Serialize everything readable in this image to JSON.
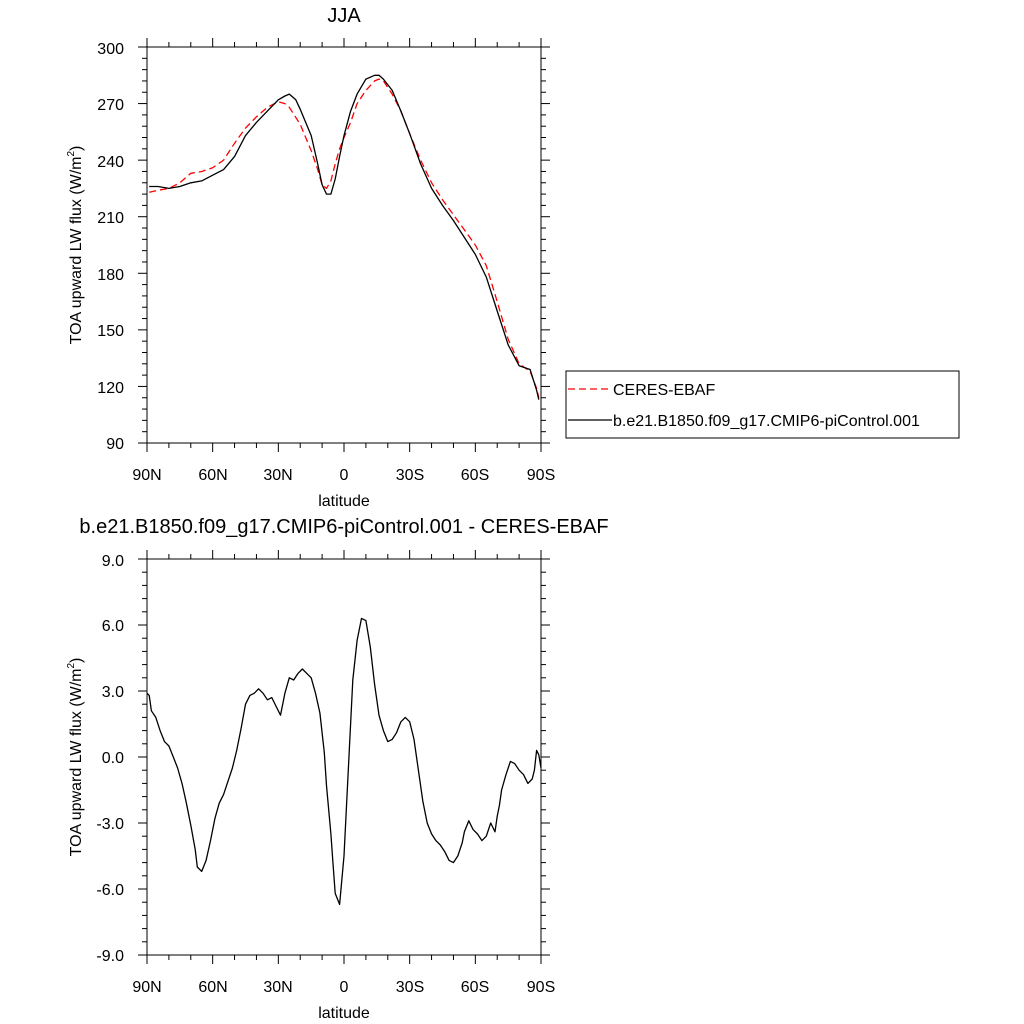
{
  "chart_data": [
    {
      "type": "line",
      "title": "JJA",
      "xlabel": "latitude",
      "ylabel": "TOA upward LW flux (W/m",
      "ylabel_sup": "2",
      "ylabel_close": ")",
      "xlim": [
        90,
        -90
      ],
      "ylim": [
        90,
        300
      ],
      "xticks": [
        90,
        60,
        30,
        0,
        -30,
        -60,
        -90
      ],
      "xtick_labels": [
        "90N",
        "60N",
        "30N",
        "0",
        "30S",
        "60S",
        "90S"
      ],
      "yticks": [
        90,
        120,
        150,
        180,
        210,
        240,
        270,
        300
      ],
      "ytick_labels": [
        "90",
        "120",
        "150",
        "180",
        "210",
        "240",
        "270",
        "300"
      ],
      "legend": "right",
      "series": [
        {
          "name": "CERES-EBAF",
          "color": "#ff0000",
          "dash": "dashed",
          "x": [
            89,
            85,
            80,
            75,
            70,
            65,
            60,
            55,
            50,
            45,
            40,
            35,
            30,
            27,
            25,
            20,
            15,
            12,
            10,
            8,
            6,
            4,
            2,
            0,
            -3,
            -6,
            -10,
            -14,
            -16,
            -18,
            -22,
            -26,
            -30,
            -35,
            -40,
            -45,
            -50,
            -55,
            -60,
            -65,
            -70,
            -75,
            -80,
            -85,
            -88,
            -89
          ],
          "y": [
            223,
            224,
            225,
            228,
            233,
            234,
            236,
            240,
            249,
            257,
            263,
            268,
            271,
            270,
            268,
            259,
            245,
            235,
            227,
            225,
            229,
            238,
            246,
            252,
            260,
            270,
            277,
            282,
            283,
            282,
            275,
            266,
            254,
            240,
            228,
            219,
            211,
            203,
            195,
            184,
            165,
            145,
            132,
            128,
            119,
            114
          ]
        },
        {
          "name": "b.e21.B1850.f09_g17.CMIP6-piControl.001",
          "color": "#000000",
          "dash": "solid",
          "x": [
            89,
            85,
            80,
            75,
            70,
            65,
            60,
            55,
            50,
            45,
            40,
            35,
            30,
            27,
            25,
            22,
            20,
            15,
            12,
            10,
            8,
            6,
            4,
            2,
            0,
            -3,
            -6,
            -10,
            -14,
            -16,
            -18,
            -22,
            -26,
            -30,
            -35,
            -40,
            -45,
            -50,
            -55,
            -60,
            -65,
            -70,
            -75,
            -80,
            -85,
            -88,
            -89
          ],
          "y": [
            226,
            226,
            225,
            226,
            228,
            229,
            232,
            235,
            242,
            253,
            260,
            266,
            272,
            274,
            275,
            272,
            267,
            253,
            238,
            227,
            222,
            222,
            230,
            242,
            253,
            266,
            275,
            283,
            285,
            285,
            283,
            277,
            266,
            254,
            238,
            225,
            216,
            208,
            199,
            190,
            178,
            160,
            142,
            131,
            129,
            118,
            113
          ]
        }
      ]
    },
    {
      "type": "line",
      "title": "b.e21.B1850.f09_g17.CMIP6-piControl.001 - CERES-EBAF",
      "xlabel": "latitude",
      "ylabel": "TOA upward LW flux (W/m",
      "ylabel_sup": "2",
      "ylabel_close": ")",
      "xlim": [
        90,
        -90
      ],
      "ylim": [
        -9.0,
        9.0
      ],
      "xticks": [
        90,
        60,
        30,
        0,
        -30,
        -60,
        -90
      ],
      "xtick_labels": [
        "90N",
        "60N",
        "30N",
        "0",
        "30S",
        "60S",
        "90S"
      ],
      "yticks": [
        -9,
        -6,
        -3,
        0,
        3,
        6,
        9
      ],
      "ytick_labels": [
        "-9.0",
        "-6.0",
        "-3.0",
        "0.0",
        "3.0",
        "6.0",
        "9.0"
      ],
      "series": [
        {
          "color": "#000000",
          "x": [
            90,
            89,
            88,
            86,
            84,
            82,
            80,
            78,
            76,
            74,
            72,
            70,
            68,
            67,
            65,
            63,
            61,
            59,
            57,
            55,
            53,
            51,
            49,
            47,
            45,
            43,
            41,
            39,
            37,
            35,
            33,
            31,
            29,
            27,
            25,
            23,
            21,
            19,
            17,
            15,
            13,
            11,
            9,
            8,
            7,
            6,
            5,
            4,
            2,
            0,
            -2,
            -4,
            -6,
            -8,
            -10,
            -12,
            -14,
            -16,
            -18,
            -20,
            -22,
            -24,
            -26,
            -28,
            -30,
            -32,
            -34,
            -36,
            -38,
            -40,
            -42,
            -44,
            -46,
            -48,
            -50,
            -52,
            -54,
            -55,
            -57,
            -59,
            -61,
            -63,
            -65,
            -67,
            -69,
            -70,
            -71,
            -72,
            -74,
            -76,
            -78,
            -80,
            -82,
            -84,
            -86,
            -87,
            -88,
            -89,
            -90
          ],
          "y": [
            2.9,
            2.8,
            2.1,
            1.8,
            1.2,
            0.7,
            0.5,
            0.0,
            -0.5,
            -1.2,
            -2.1,
            -3.1,
            -4.2,
            -5.0,
            -5.2,
            -4.7,
            -3.8,
            -2.8,
            -2.1,
            -1.7,
            -1.1,
            -0.5,
            0.3,
            1.3,
            2.4,
            2.8,
            2.9,
            3.1,
            2.9,
            2.6,
            2.7,
            2.3,
            1.9,
            2.9,
            3.6,
            3.5,
            3.8,
            4.0,
            3.8,
            3.6,
            2.9,
            2.0,
            0.2,
            -1.3,
            -2.4,
            -3.5,
            -4.9,
            -6.2,
            -6.7,
            -4.5,
            -0.5,
            3.5,
            5.3,
            6.3,
            6.2,
            5.0,
            3.3,
            1.9,
            1.2,
            0.7,
            0.8,
            1.1,
            1.6,
            1.8,
            1.6,
            0.8,
            -0.6,
            -2.0,
            -3.0,
            -3.5,
            -3.8,
            -4.0,
            -4.3,
            -4.7,
            -4.8,
            -4.5,
            -3.9,
            -3.4,
            -2.9,
            -3.3,
            -3.5,
            -3.8,
            -3.6,
            -3.0,
            -3.4,
            -2.7,
            -2.2,
            -1.5,
            -0.8,
            -0.2,
            -0.3,
            -0.6,
            -0.8,
            -1.2,
            -1.0,
            -0.6,
            0.3,
            0.1,
            -0.5
          ]
        }
      ]
    }
  ]
}
